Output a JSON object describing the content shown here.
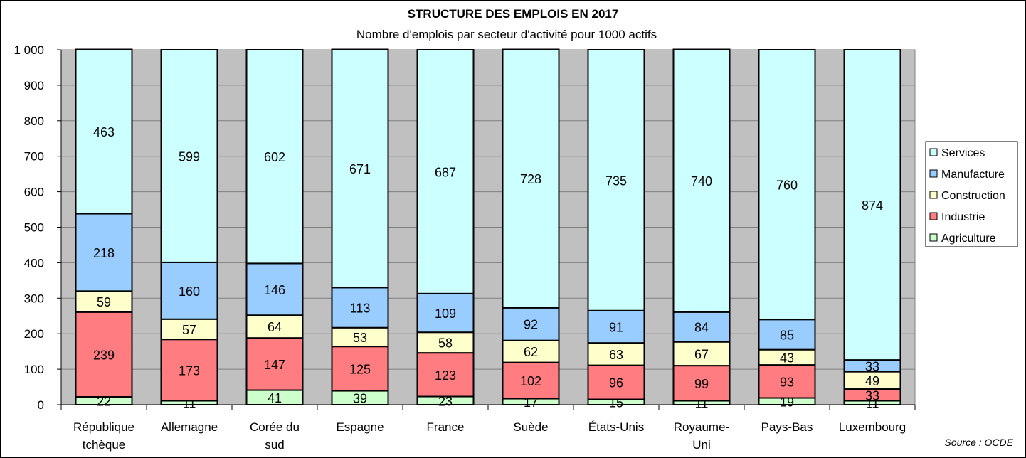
{
  "chart_data": {
    "type": "bar",
    "stacked": true,
    "title": "STRUCTURE DES EMPLOIS EN 2017",
    "subtitle": "Nombre d'emplois par secteur d'activité pour 1000 actifs",
    "xlabel": "",
    "ylabel": "",
    "ylim": [
      0,
      1000
    ],
    "yticks": [
      0,
      100,
      200,
      300,
      400,
      500,
      600,
      700,
      800,
      900,
      1000
    ],
    "ytick_labels": [
      "0",
      "100",
      "200",
      "300",
      "400",
      "500",
      "600",
      "700",
      "800",
      "900",
      "1 000"
    ],
    "grid": true,
    "legend_position": "right",
    "categories": [
      [
        "République",
        "tchèque"
      ],
      [
        "Allemagne"
      ],
      [
        "Corée du",
        "sud"
      ],
      [
        "Espagne"
      ],
      [
        "France"
      ],
      [
        "Suède"
      ],
      [
        "États-Unis"
      ],
      [
        "Royaume-",
        "Uni"
      ],
      [
        "Pays-Bas"
      ],
      [
        "Luxembourg"
      ]
    ],
    "series": [
      {
        "name": "Agriculture",
        "color": "#CCFFCC",
        "values": [
          22,
          11,
          41,
          39,
          23,
          17,
          15,
          11,
          19,
          11
        ]
      },
      {
        "name": "Industrie",
        "color": "#FF7C80",
        "values": [
          239,
          173,
          147,
          125,
          123,
          102,
          96,
          99,
          93,
          33
        ]
      },
      {
        "name": "Construction",
        "color": "#FFFFCC",
        "values": [
          59,
          57,
          64,
          53,
          58,
          62,
          63,
          67,
          43,
          49
        ]
      },
      {
        "name": "Manufacture",
        "color": "#99CCFF",
        "values": [
          218,
          160,
          146,
          113,
          109,
          92,
          91,
          84,
          85,
          33
        ]
      },
      {
        "name": "Services",
        "color": "#CCFFFF",
        "values": [
          463,
          599,
          602,
          671,
          687,
          728,
          735,
          740,
          760,
          874
        ]
      }
    ],
    "legend_order": [
      "Services",
      "Manufacture",
      "Construction",
      "Industrie",
      "Agriculture"
    ],
    "plot_background": "#C0C0C0",
    "source": "Source : OCDE"
  }
}
